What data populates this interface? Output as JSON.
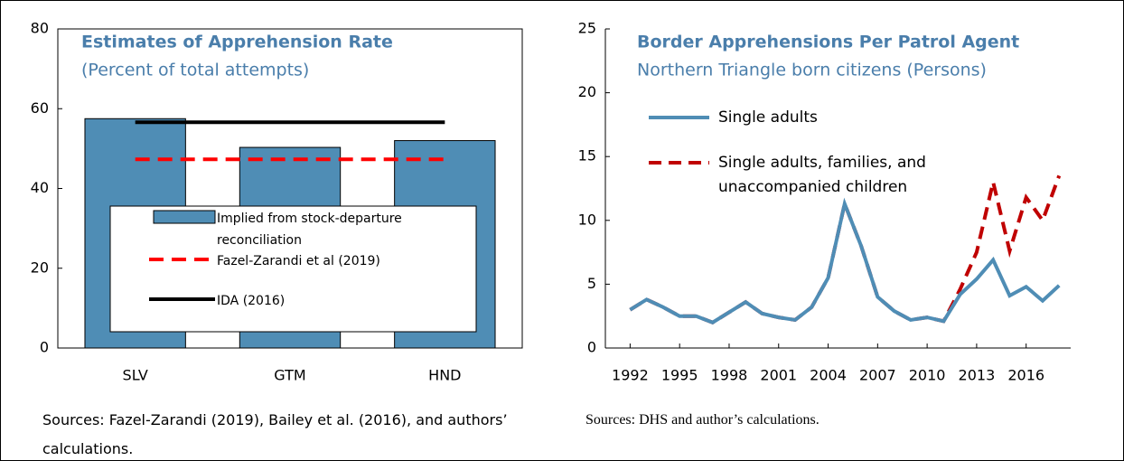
{
  "chart_data": [
    {
      "type": "bar",
      "title": "Estimates of Apprehension Rate",
      "subtitle": "(Percent of total attempts)",
      "categories": [
        "SLV",
        "GTM",
        "HND"
      ],
      "series": [
        {
          "name": "Implied from stock-departure reconciliation",
          "type": "bar",
          "color": "#4f8db5",
          "values": [
            57.5,
            50.3,
            52.0
          ]
        },
        {
          "name": "Fazel-Zarandi et al (2019)",
          "type": "line",
          "dashed": true,
          "color": "#ff0000",
          "values": [
            47.3,
            47.3,
            47.3
          ]
        },
        {
          "name": "IDA (2016)",
          "type": "line",
          "color": "#000000",
          "values": [
            56.6,
            56.6,
            56.6
          ]
        }
      ],
      "ylim": [
        0,
        80
      ],
      "yticks": [
        0,
        20,
        40,
        60,
        80
      ],
      "source": "Sources: Fazel-Zarandi (2019), Bailey et al. (2016), and authors’ calculations."
    },
    {
      "type": "line",
      "title": "Border Apprehensions Per Patrol Agent",
      "subtitle": "Northern Triangle born citizens (Persons)",
      "x": [
        1992,
        1993,
        1994,
        1995,
        1996,
        1997,
        1998,
        1999,
        2000,
        2001,
        2002,
        2003,
        2004,
        2005,
        2006,
        2007,
        2008,
        2009,
        2010,
        2011,
        2012,
        2013,
        2014,
        2015,
        2016,
        2017,
        2018
      ],
      "series": [
        {
          "name": "Single adults, families, and unaccompanied children",
          "color": "#c00000",
          "dashed": true,
          "values": [
            3.0,
            3.8,
            3.2,
            2.5,
            2.5,
            2.0,
            2.8,
            3.6,
            2.7,
            2.4,
            2.2,
            3.2,
            5.5,
            11.3,
            8.0,
            4.0,
            2.9,
            2.2,
            2.4,
            2.1,
            4.6,
            7.5,
            13.0,
            7.6,
            11.8,
            10.0,
            13.5
          ]
        },
        {
          "name": "Single adults",
          "color": "#4f8db5",
          "dashed": false,
          "values": [
            3.0,
            3.8,
            3.2,
            2.5,
            2.5,
            2.0,
            2.8,
            3.6,
            2.7,
            2.4,
            2.2,
            3.2,
            5.5,
            11.3,
            8.0,
            4.0,
            2.9,
            2.2,
            2.4,
            2.1,
            4.2,
            5.4,
            6.9,
            4.1,
            4.8,
            3.7,
            4.9
          ]
        }
      ],
      "xlim": [
        1990.5,
        2018.7
      ],
      "xticks": [
        1992,
        1995,
        1998,
        2001,
        2004,
        2007,
        2010,
        2013,
        2016
      ],
      "ylim": [
        0,
        25
      ],
      "yticks": [
        0,
        5,
        10,
        15,
        20,
        25
      ],
      "source": "Sources: DHS and author’s calculations."
    }
  ]
}
